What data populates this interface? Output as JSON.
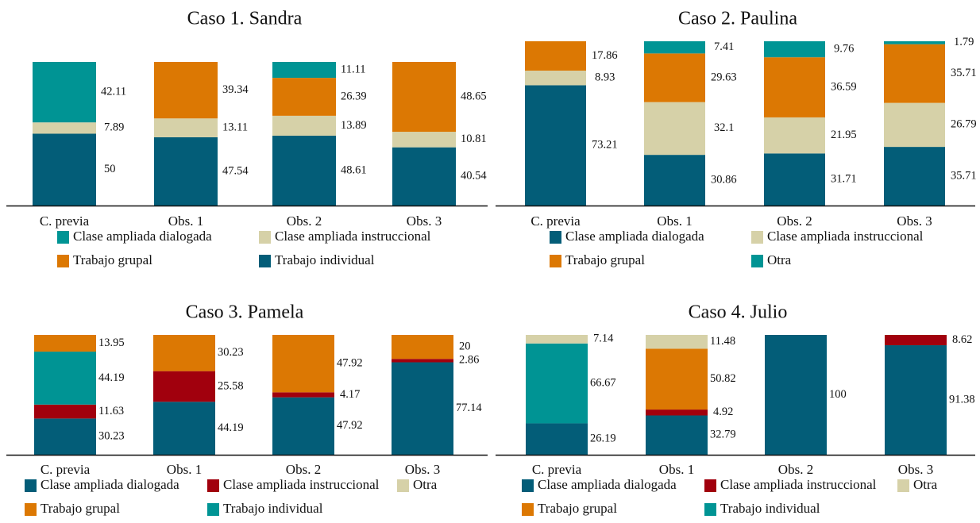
{
  "colors": {
    "teal": "#009494",
    "beige": "#d6d1a8",
    "dark_teal": "#035d78",
    "orange": "#dc7803",
    "dark_red": "#a1000d"
  },
  "chart_data": [
    {
      "type": "bar",
      "stacked": true,
      "title": "Caso 1. Sandra",
      "categories": [
        "C. previa",
        "Obs. 1",
        "Obs. 2",
        "Obs. 3"
      ],
      "ylim": [
        0,
        100
      ],
      "series": [
        {
          "name": "Trabajo individual",
          "color": "dark_teal",
          "values": [
            50,
            47.54,
            48.61,
            40.54
          ],
          "labels": [
            "50",
            "47.54",
            "48.61",
            "40.54"
          ]
        },
        {
          "name": "Clase ampliada instruccional",
          "color": "beige",
          "values": [
            7.89,
            13.11,
            13.89,
            10.81
          ],
          "labels": [
            "7.89",
            "13.11",
            "13.89",
            "10.81"
          ]
        },
        {
          "name": "Trabajo grupal",
          "color": "orange",
          "values": [
            0,
            39.34,
            26.39,
            48.65
          ],
          "labels": [
            "",
            "39.34",
            "26.39",
            "48.65"
          ]
        },
        {
          "name": "Clase ampliada dialogada",
          "color": "teal",
          "values": [
            42.11,
            0,
            11.11,
            0
          ],
          "labels": [
            "42.11",
            "",
            "11.11",
            ""
          ]
        }
      ],
      "legend": [
        {
          "label": "Clase ampliada dialogada",
          "color": "teal"
        },
        {
          "label": "Clase ampliada instruccional",
          "color": "beige"
        },
        {
          "label": "Trabajo grupal",
          "color": "orange"
        },
        {
          "label": "Trabajo individual",
          "color": "dark_teal"
        }
      ],
      "legend_columns": 2,
      "legend_placement": "bottom"
    },
    {
      "type": "bar",
      "stacked": true,
      "title": "Caso 2. Paulina",
      "categories": [
        "C. previa",
        "Obs. 1",
        "Obs. 2",
        "Obs. 3"
      ],
      "ylim": [
        0,
        100
      ],
      "series": [
        {
          "name": "Clase ampliada dialogada",
          "color": "dark_teal",
          "values": [
            73.21,
            30.86,
            31.71,
            35.71
          ],
          "labels": [
            "73.21",
            "30.86",
            "31.71",
            "35.71"
          ]
        },
        {
          "name": "Clase ampliada instruccional",
          "color": "beige",
          "values": [
            8.93,
            32.1,
            21.95,
            26.79
          ],
          "labels": [
            "8.93",
            "32.1",
            "21.95",
            "26.79"
          ]
        },
        {
          "name": "Trabajo grupal",
          "color": "orange",
          "values": [
            17.86,
            29.63,
            36.59,
            35.71
          ],
          "labels": [
            "17.86",
            "29.63",
            "36.59",
            "35.71"
          ]
        },
        {
          "name": "Otra",
          "color": "teal",
          "values": [
            0,
            7.41,
            9.76,
            1.79
          ],
          "labels": [
            "",
            "7.41",
            "9.76",
            "1.79"
          ]
        }
      ],
      "legend": [
        {
          "label": "Clase ampliada dialogada",
          "color": "dark_teal"
        },
        {
          "label": "Clase ampliada instruccional",
          "color": "beige"
        },
        {
          "label": "Trabajo grupal",
          "color": "orange"
        },
        {
          "label": "Otra",
          "color": "teal"
        }
      ],
      "legend_columns": 2,
      "legend_placement": "bottom"
    },
    {
      "type": "bar",
      "stacked": true,
      "title": "Caso 3. Pamela",
      "categories": [
        "C. previa",
        "Obs. 1",
        "Obs. 2",
        "Obs. 3"
      ],
      "ylim": [
        0,
        100
      ],
      "series": [
        {
          "name": "Clase ampliada dialogada",
          "color": "dark_teal",
          "values": [
            30.23,
            44.19,
            47.92,
            77.14
          ],
          "labels": [
            "30.23",
            "44.19",
            "47.92",
            "77.14"
          ]
        },
        {
          "name": "Clase ampliada instruccional",
          "color": "dark_red",
          "values": [
            11.63,
            25.58,
            4.17,
            2.86
          ],
          "labels": [
            "11.63",
            "25.58",
            "4.17",
            "2.86"
          ]
        },
        {
          "name": "Trabajo individual",
          "color": "teal",
          "values": [
            44.19,
            0,
            0,
            0
          ],
          "labels": [
            "44.19",
            "",
            "",
            ""
          ]
        },
        {
          "name": "Trabajo grupal",
          "color": "orange",
          "values": [
            13.95,
            30.23,
            47.92,
            20
          ],
          "labels": [
            "13.95",
            "30.23",
            "47.92",
            "20"
          ]
        }
      ],
      "legend": [
        {
          "label": "Clase ampliada dialogada",
          "color": "dark_teal"
        },
        {
          "label": "Clase ampliada instruccional",
          "color": "dark_red"
        },
        {
          "label": "Otra",
          "color": "beige"
        },
        {
          "label": "Trabajo grupal",
          "color": "orange"
        },
        {
          "label": "Trabajo individual",
          "color": "teal"
        }
      ],
      "legend_columns": 3,
      "legend_placement": "bottom"
    },
    {
      "type": "bar",
      "stacked": true,
      "title": "Caso 4. Julio",
      "categories": [
        "C. previa",
        "Obs. 1",
        "Obs. 2",
        "Obs. 3"
      ],
      "ylim": [
        0,
        100
      ],
      "series": [
        {
          "name": "Clase ampliada dialogada",
          "color": "dark_teal",
          "values": [
            26.19,
            32.79,
            100,
            91.38
          ],
          "labels": [
            "26.19",
            "32.79",
            "100",
            "91.38"
          ]
        },
        {
          "name": "Clase ampliada instruccional",
          "color": "dark_red",
          "values": [
            0,
            4.92,
            0,
            8.62
          ],
          "labels": [
            "",
            "4.92",
            "",
            "8.62"
          ]
        },
        {
          "name": "Trabajo individual",
          "color": "teal",
          "values": [
            66.67,
            0,
            0,
            0
          ],
          "labels": [
            "66.67",
            "",
            "",
            ""
          ]
        },
        {
          "name": "Trabajo grupal",
          "color": "orange",
          "values": [
            0,
            50.82,
            0,
            0
          ],
          "labels": [
            "",
            "50.82",
            "",
            ""
          ]
        },
        {
          "name": "Otra",
          "color": "beige",
          "values": [
            7.14,
            11.48,
            0,
            0
          ],
          "labels": [
            "7.14",
            "11.48",
            "",
            ""
          ]
        }
      ],
      "legend": [
        {
          "label": "Clase ampliada dialogada",
          "color": "dark_teal"
        },
        {
          "label": "Clase ampliada instruccional",
          "color": "dark_red"
        },
        {
          "label": "Otra",
          "color": "beige"
        },
        {
          "label": "Trabajo grupal",
          "color": "orange"
        },
        {
          "label": "Trabajo individual",
          "color": "teal"
        }
      ],
      "legend_columns": 3,
      "legend_placement": "bottom"
    }
  ]
}
